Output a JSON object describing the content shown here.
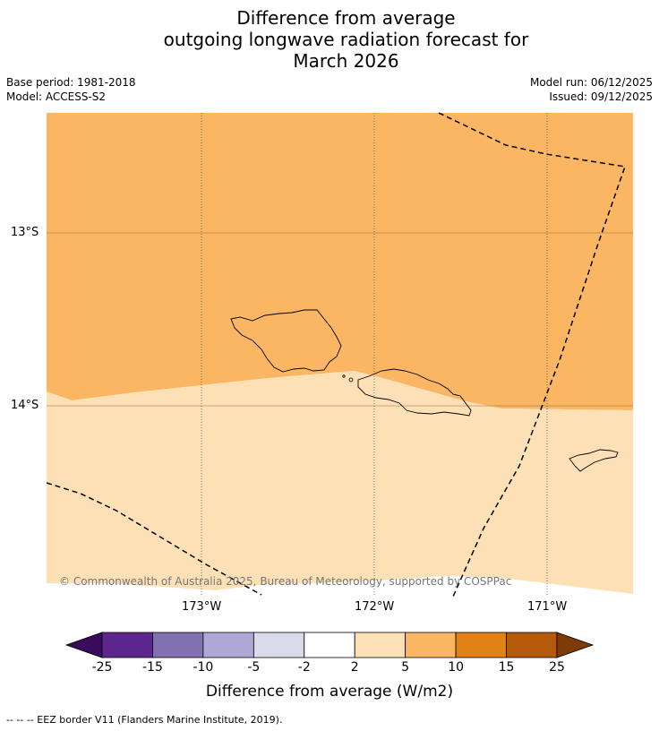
{
  "title_lines": [
    "Difference from average",
    "outgoing longwave radiation forecast for",
    "March 2026"
  ],
  "meta": {
    "base_period": "Base period: 1981-2018",
    "model": "Model: ACCESS-S2",
    "model_run": "Model run: 06/12/2025",
    "issued": "Issued: 09/12/2025"
  },
  "map": {
    "lat_labels": [
      "13°S",
      "14°S"
    ],
    "lon_labels": [
      "173°W",
      "172°W",
      "171°W"
    ],
    "copyright": "© Commonwealth of Australia 2025, Bureau of Meteorology, supported by COSPPac",
    "region_colors": {
      "upper": "#fbb663",
      "lower": "#fde0b6"
    }
  },
  "colorbar": {
    "label": "Difference from average (W/m2)",
    "tick_labels": [
      "-25",
      "-15",
      "-10",
      "-5",
      "-2",
      "2",
      "5",
      "10",
      "15",
      "25"
    ],
    "colors": [
      "#3a0a5c",
      "#5c278f",
      "#8171b0",
      "#b0a8d4",
      "#dadaeb",
      "#ffffff",
      "#fde0b6",
      "#fbb663",
      "#e08215",
      "#b45a0a",
      "#7e3b08"
    ]
  },
  "footer": "-- -- -- EEZ border V11 (Flanders Marine Institute, 2019)."
}
